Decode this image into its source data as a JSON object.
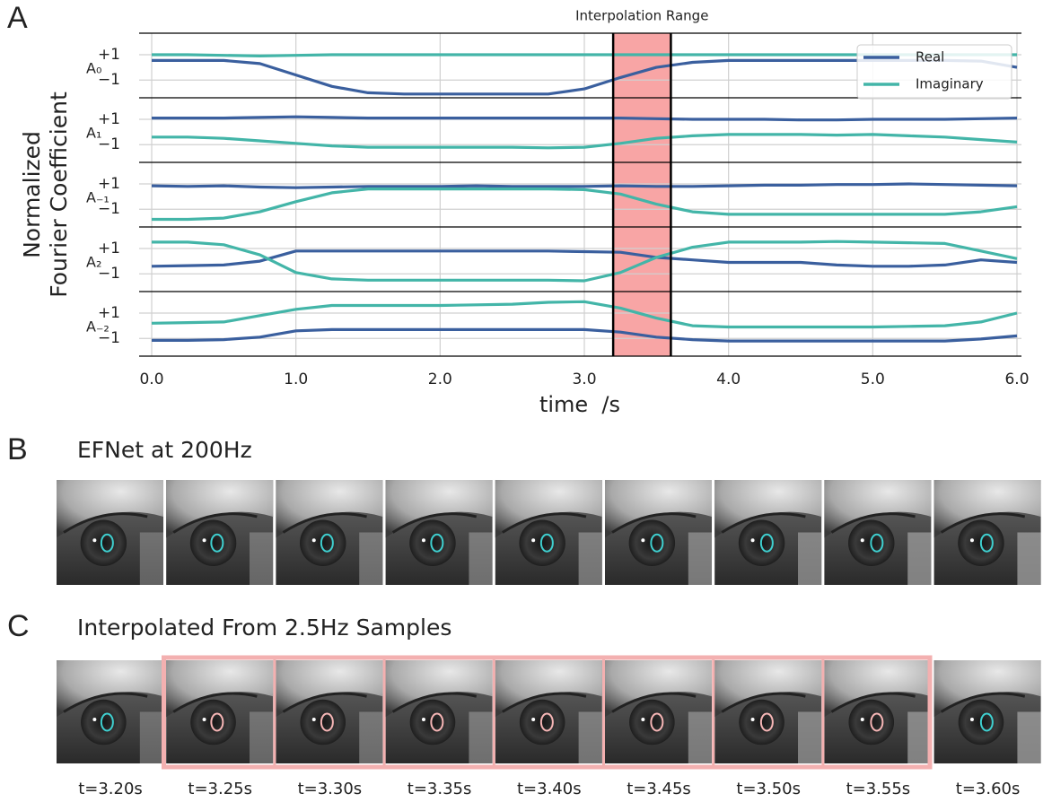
{
  "panel_labels": [
    "A",
    "B",
    "C"
  ],
  "efnet_title": "EFNet at 200Hz",
  "interp_title": "Interpolated From 2.5Hz Samples",
  "frame_times": [
    "t=3.20s",
    "t=3.25s",
    "t=3.30s",
    "t=3.35s",
    "t=3.40s",
    "t=3.45s",
    "t=3.50s",
    "t=3.55s",
    "t=3.60s"
  ],
  "chart_data": {
    "type": "line",
    "annotation": "Interpolation Range",
    "highlight": [
      3.2,
      3.6
    ],
    "highlight_color": "#f8a5a5",
    "ylabel": [
      "Normalized",
      "Fourier Coefficient"
    ],
    "xlabel": "time  /s",
    "rows": [
      "A₀",
      "A₁",
      "A₋₁",
      "A₂",
      "A₋₂"
    ],
    "x": [
      0,
      0.25,
      0.5,
      0.75,
      1,
      1.25,
      1.5,
      1.75,
      2,
      2.25,
      2.5,
      2.75,
      3,
      3.25,
      3.5,
      3.75,
      4,
      4.25,
      4.5,
      4.75,
      5,
      5.25,
      5.5,
      5.75,
      6
    ],
    "xlim": [
      0,
      6
    ],
    "xticks": [
      {
        "value": 0,
        "label": "0.0"
      },
      {
        "value": 1,
        "label": "1.0"
      },
      {
        "value": 2,
        "label": "2.0"
      },
      {
        "value": 3,
        "label": "3.0"
      },
      {
        "value": 4,
        "label": "4.0"
      },
      {
        "value": 5,
        "label": "5.0"
      },
      {
        "value": 6,
        "label": "6.0"
      }
    ],
    "ylim": [
      -2.4,
      2.7
    ],
    "yticks": [
      {
        "value": 1,
        "label": "+1"
      },
      {
        "value": -1,
        "label": "−1"
      }
    ],
    "grid": true,
    "legend": "upper right",
    "series": [
      {
        "name": "Real",
        "color": "#3a5f9e",
        "values": [
          [
            0.55,
            0.55,
            0.55,
            0.3,
            -0.6,
            -1.5,
            -2.0,
            -2.1,
            -2.1,
            -2.1,
            -2.1,
            -2.1,
            -1.7,
            -0.8,
            0.0,
            0.4,
            0.55,
            0.55,
            0.55,
            0.55,
            0.55,
            0.55,
            0.55,
            0.5,
            0.0
          ],
          [
            1.1,
            1.1,
            1.1,
            1.15,
            1.2,
            1.15,
            1.1,
            1.1,
            1.1,
            1.1,
            1.1,
            1.1,
            1.1,
            1.1,
            1.05,
            1.0,
            1.0,
            1.0,
            0.95,
            0.95,
            1.0,
            1.0,
            1.0,
            1.05,
            1.1
          ],
          [
            0.85,
            0.8,
            0.85,
            0.75,
            0.7,
            0.75,
            0.8,
            0.8,
            0.8,
            0.85,
            0.8,
            0.8,
            0.8,
            0.85,
            0.8,
            0.8,
            0.85,
            0.9,
            0.9,
            0.95,
            0.95,
            1.0,
            0.95,
            0.9,
            0.85
          ],
          [
            -0.4,
            -0.35,
            -0.3,
            0.0,
            0.8,
            0.8,
            0.8,
            0.8,
            0.8,
            0.8,
            0.8,
            0.8,
            0.75,
            0.7,
            0.3,
            0.1,
            -0.1,
            -0.1,
            -0.1,
            -0.3,
            -0.4,
            -0.4,
            -0.3,
            0.1,
            -0.1
          ],
          [
            -1.15,
            -1.15,
            -1.1,
            -0.9,
            -0.4,
            -0.3,
            -0.3,
            -0.3,
            -0.3,
            -0.3,
            -0.3,
            -0.3,
            -0.3,
            -0.5,
            -0.9,
            -1.1,
            -1.2,
            -1.2,
            -1.2,
            -1.2,
            -1.2,
            -1.2,
            -1.2,
            -1.05,
            -0.8
          ]
        ]
      },
      {
        "name": "Imaginary",
        "color": "#43b5a8",
        "values": [
          [
            1.0,
            1.0,
            0.95,
            0.9,
            0.95,
            1.0,
            1.0,
            1.0,
            1.0,
            1.0,
            1.0,
            1.0,
            1.0,
            1.0,
            1.0,
            1.0,
            1.0,
            1.0,
            1.0,
            1.0,
            1.0,
            1.0,
            1.0,
            1.0,
            1.0
          ],
          [
            -0.4,
            -0.4,
            -0.5,
            -0.7,
            -0.9,
            -1.1,
            -1.2,
            -1.2,
            -1.2,
            -1.2,
            -1.2,
            -1.25,
            -1.2,
            -0.9,
            -0.5,
            -0.3,
            -0.2,
            -0.2,
            -0.2,
            -0.25,
            -0.2,
            -0.3,
            -0.4,
            -0.6,
            -0.8
          ],
          [
            -1.8,
            -1.8,
            -1.7,
            -1.2,
            -0.4,
            0.3,
            0.6,
            0.6,
            0.6,
            0.6,
            0.6,
            0.6,
            0.55,
            0.2,
            -0.6,
            -1.2,
            -1.4,
            -1.4,
            -1.4,
            -1.4,
            -1.4,
            -1.4,
            -1.4,
            -1.2,
            -0.8
          ],
          [
            1.5,
            1.5,
            1.3,
            0.5,
            -0.9,
            -1.4,
            -1.5,
            -1.5,
            -1.5,
            -1.5,
            -1.5,
            -1.5,
            -1.55,
            -0.9,
            0.3,
            1.1,
            1.5,
            1.5,
            1.5,
            1.55,
            1.5,
            1.45,
            1.4,
            0.8,
            0.2
          ],
          [
            0.2,
            0.25,
            0.3,
            0.8,
            1.3,
            1.6,
            1.6,
            1.6,
            1.6,
            1.65,
            1.7,
            1.85,
            1.9,
            1.4,
            0.6,
            0.0,
            -0.1,
            -0.1,
            -0.1,
            -0.1,
            -0.1,
            -0.05,
            0.0,
            0.3,
            1.0
          ]
        ]
      }
    ]
  }
}
